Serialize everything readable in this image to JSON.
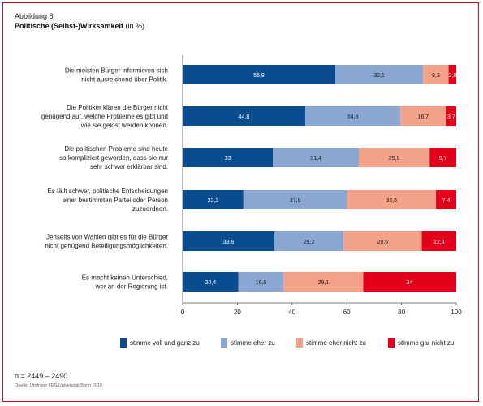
{
  "figure": {
    "label": "Abbildung 8",
    "title": "Politische (Selbst-)Wirksamkeit",
    "title_unit": "(in %)",
    "n": "n = 2449 – 2490",
    "source": "Quelle: Umfrage FES/Universität Bonn 2019",
    "frame_color": "#e3001b"
  },
  "chart_data": {
    "type": "bar",
    "orientation": "horizontal",
    "stacked": true,
    "categories": [
      [
        "Die meisten Bürger informieren sich",
        "nicht ausreichend über Politik."
      ],
      [
        "Die Politiker klären die Bürger nicht",
        "genügend auf, welche Probleme es gibt und",
        "wie sie gelöst werden können."
      ],
      [
        "Die politischen Probleme sind heute",
        "so kompliziert geworden, dass sie nur",
        "sehr schwer erklärbar sind."
      ],
      [
        "Es fällt schwer, politische Entscheidungen",
        "einer bestimmten Partei oder Person",
        "zuzuordnen."
      ],
      [
        "Jenseits von Wahlen gibt es für die Bürger",
        "nicht genügend Beteiligungsmöglichkeiten."
      ],
      [
        "Es macht keinen Unterschied,",
        "wer an der Regierung ist."
      ]
    ],
    "series": [
      {
        "name": "stimme voll und ganz zu",
        "color": "#0a4d8f",
        "label_color": "#ffffff",
        "values": [
          55.8,
          44.8,
          33,
          22.2,
          33.6,
          20.4
        ]
      },
      {
        "name": "stimme eher zu",
        "color": "#8aa6d3",
        "label_color": "#1a1a1a",
        "values": [
          32.1,
          34.8,
          31.4,
          37.9,
          25.2,
          16.5
        ]
      },
      {
        "name": "stimme eher nicht zu",
        "color": "#f4a28a",
        "label_color": "#1a1a1a",
        "values": [
          9.3,
          16.7,
          25.9,
          32.5,
          28.6,
          29.1
        ]
      },
      {
        "name": "stimme gar nicht zu",
        "color": "#e3001b",
        "label_color": "#ffffff",
        "values": [
          2.8,
          3.7,
          9.7,
          7.4,
          12.6,
          34
        ]
      }
    ],
    "xlim": [
      0,
      100
    ],
    "xticks": [
      0,
      20,
      40,
      60,
      80,
      100
    ],
    "grid": false,
    "legend_position": "bottom"
  }
}
